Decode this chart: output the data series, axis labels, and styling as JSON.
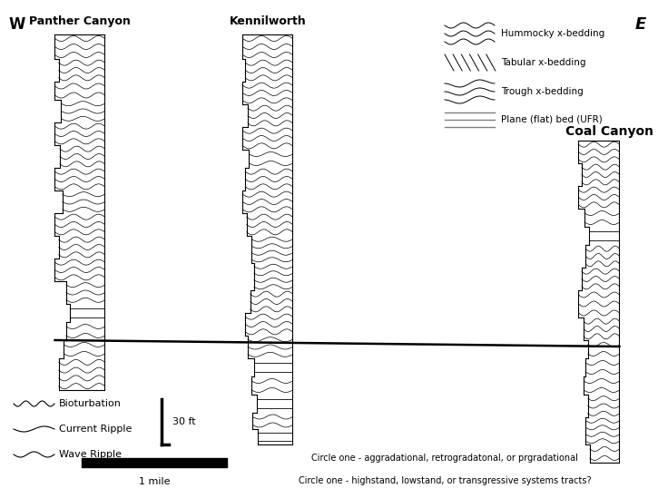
{
  "title_w": "W",
  "title_e": "E",
  "location1": "Panther Canyon",
  "location2": "Kennilworth",
  "location3": "Coal Canyon",
  "legend_items": [
    "Hummocky x-bedding",
    "Tabular x-bedding",
    "Trough x-bedding",
    "Plane (flat) bed (UFR)"
  ],
  "bottom_legend": [
    "Bioturbation",
    "Current Ripple",
    "Wave Ripple"
  ],
  "scale_bar_label": "1 mile",
  "scale_bar_ft": "30 ft",
  "circle_text1": "Circle one - aggradational, retrogradatonal, or prgradational",
  "circle_text2": "Circle one - highstand, lowstand, or transgressive systems tracts?",
  "bg_color": "#ffffff",
  "line_color": "#000000",
  "figsize": [
    7.25,
    5.49
  ],
  "dpi": 100
}
